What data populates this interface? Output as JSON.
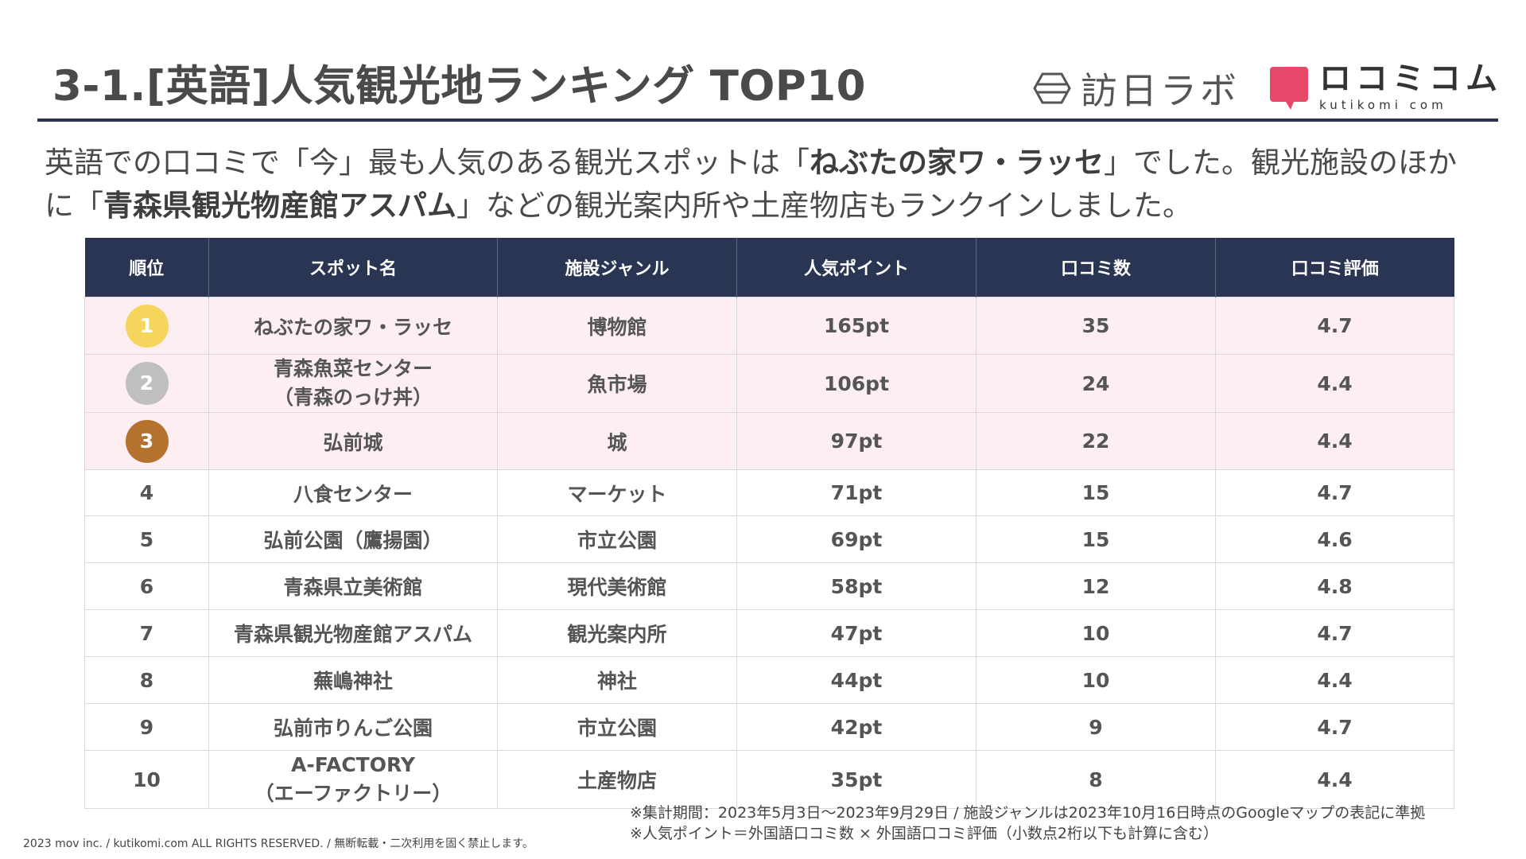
{
  "header": {
    "title": "3-1.[英語]人気観光地ランキング TOP10",
    "logo_houn": "訪日ラボ",
    "logo_kutikomi_main": "ロコミコム",
    "logo_kutikomi_sub": "kutikomi com"
  },
  "intro": {
    "p1": "英語での口コミで「今」最も人気のある観光スポットは「",
    "b1": "ねぶたの家ワ・ラッセ",
    "p2": "」でした。観光施設のほかに「",
    "b2": "青森県観光物産館アスパム",
    "p3": "」などの観光案内所や土産物店もランクインしました。"
  },
  "table": {
    "headers": [
      "順位",
      "スポット名",
      "施設ジャンル",
      "人気ポイント",
      "口コミ数",
      "口コミ評価"
    ],
    "rows": [
      {
        "rank": "1",
        "name": "ねぶたの家ワ・ラッセ",
        "name2": "",
        "genre": "博物館",
        "points": "165pt",
        "count": "35",
        "rating": "4.7"
      },
      {
        "rank": "2",
        "name": "青森魚菜センター",
        "name2": "（青森のっけ丼）",
        "genre": "魚市場",
        "points": "106pt",
        "count": "24",
        "rating": "4.4"
      },
      {
        "rank": "3",
        "name": "弘前城",
        "name2": "",
        "genre": "城",
        "points": "97pt",
        "count": "22",
        "rating": "4.4"
      },
      {
        "rank": "4",
        "name": "八食センター",
        "name2": "",
        "genre": "マーケット",
        "points": "71pt",
        "count": "15",
        "rating": "4.7"
      },
      {
        "rank": "5",
        "name": "弘前公園（鷹揚園）",
        "name2": "",
        "genre": "市立公園",
        "points": "69pt",
        "count": "15",
        "rating": "4.6"
      },
      {
        "rank": "6",
        "name": "青森県立美術館",
        "name2": "",
        "genre": "現代美術館",
        "points": "58pt",
        "count": "12",
        "rating": "4.8"
      },
      {
        "rank": "7",
        "name": "青森県観光物産館アスパム",
        "name2": "",
        "genre": "観光案内所",
        "points": "47pt",
        "count": "10",
        "rating": "4.7"
      },
      {
        "rank": "8",
        "name": "蕪嶋神社",
        "name2": "",
        "genre": "神社",
        "points": "44pt",
        "count": "10",
        "rating": "4.4"
      },
      {
        "rank": "9",
        "name": "弘前市りんご公園",
        "name2": "",
        "genre": "市立公園",
        "points": "42pt",
        "count": "9",
        "rating": "4.7"
      },
      {
        "rank": "10",
        "name": "A-FACTORY",
        "name2": "（エーファクトリー）",
        "genre": "土産物店",
        "points": "35pt",
        "count": "8",
        "rating": "4.4"
      }
    ]
  },
  "colors": {
    "navy": "#2a3553",
    "top3_bg": "#fdeef2",
    "gold": "#f5d55b",
    "silver": "#bfbfbf",
    "bronze": "#b5722f",
    "brand_pink": "#e6486a"
  },
  "footnotes": {
    "line1": "※集計期間：2023年5月3日〜2023年9月29日 / 施設ジャンルは2023年10月16日時点のGoogleマップの表記に準拠",
    "line2": "※人気ポイント＝外国語口コミ数 × 外国語口コミ評価（小数点2桁以下も計算に含む）"
  },
  "copyright": "2023 mov inc. / kutikomi.com ALL RIGHTS RESERVED. / 無断転載・二次利用を固く禁止します。"
}
